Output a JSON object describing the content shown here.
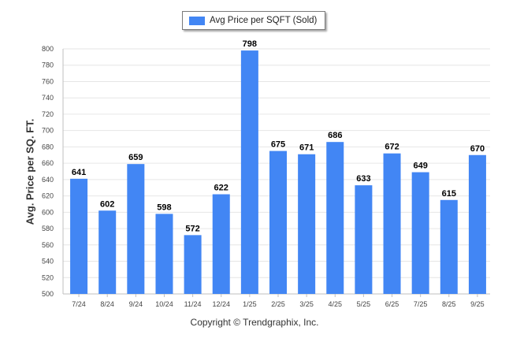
{
  "chart_data": {
    "type": "bar",
    "title": "",
    "xlabel": "",
    "ylabel": "Avg. Price per SQ. FT.",
    "legend": [
      "Avg Price per SQFT (Sold)"
    ],
    "legend_position": "top-center",
    "categories": [
      "7/24",
      "8/24",
      "9/24",
      "10/24",
      "11/24",
      "12/24",
      "1/25",
      "2/25",
      "3/25",
      "4/25",
      "5/25",
      "6/25",
      "7/25",
      "8/25",
      "9/25"
    ],
    "series": [
      {
        "name": "Avg Price per SQFT (Sold)",
        "values": [
          641,
          602,
          659,
          598,
          572,
          622,
          798,
          675,
          671,
          686,
          633,
          672,
          649,
          615,
          670
        ]
      }
    ],
    "ylim": [
      500,
      800
    ],
    "yticks": [
      500,
      520,
      540,
      560,
      580,
      600,
      620,
      640,
      660,
      680,
      700,
      720,
      740,
      760,
      780,
      800
    ],
    "grid": true,
    "bar_color": "#4286f4",
    "grid_color": "#e6e6e6"
  },
  "footer": {
    "copyright": "Copyright © Trendgraphix, Inc."
  }
}
